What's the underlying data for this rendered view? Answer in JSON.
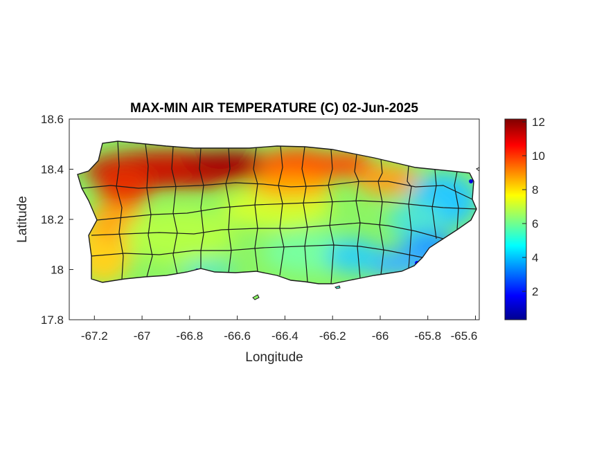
{
  "title": "MAX-MIN AIR TEMPERATURE (C) 02-Jun-2025",
  "xlabel": "Longitude",
  "ylabel": "Latitude",
  "xlim": [
    -67.3,
    -65.58
  ],
  "ylim": [
    17.8,
    18.6
  ],
  "xticks": [
    "-67.2",
    "-67",
    "-66.8",
    "-66.6",
    "-66.4",
    "-66.2",
    "-66",
    "-65.8",
    "-65.6"
  ],
  "yticks": [
    "18.6",
    "18.4",
    "18.2",
    "18",
    "17.8"
  ],
  "colorbar": {
    "colormap": "jet",
    "range": [
      0.4,
      12.3
    ],
    "ticks": [
      "12",
      "10",
      "8",
      "6",
      "4",
      "2"
    ],
    "colors": [
      "#00008f",
      "#0000ff",
      "#00ffff",
      "#ffff00",
      "#ff0000",
      "#800000"
    ]
  },
  "region": "Puerto Rico",
  "field_summary": {
    "highest": "north-central and north-western coastal band, ~11-12 C",
    "middle": "interior and south coast, ~6-8 C",
    "lowest": "south-eastern coast, ~2-4 C"
  }
}
